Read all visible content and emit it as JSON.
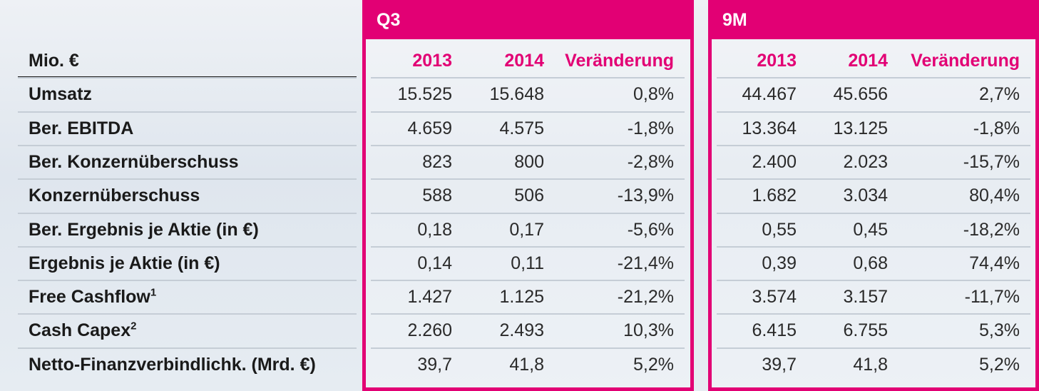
{
  "header": {
    "unit_label": "Mio. €",
    "q3_title": "Q3",
    "nm_title": "9M",
    "col_2013": "2013",
    "col_2014": "2014",
    "col_change": "Veränderung"
  },
  "rows": [
    {
      "label": "Umsatz",
      "sup": "",
      "q3_2013": "15.525",
      "q3_2014": "15.648",
      "q3_change": "0,8%",
      "nm_2013": "44.467",
      "nm_2014": "45.656",
      "nm_change": "2,7%"
    },
    {
      "label": "Ber. EBITDA",
      "sup": "",
      "q3_2013": "4.659",
      "q3_2014": "4.575",
      "q3_change": "-1,8%",
      "nm_2013": "13.364",
      "nm_2014": "13.125",
      "nm_change": "-1,8%"
    },
    {
      "label": "Ber. Konzernüberschuss",
      "sup": "",
      "q3_2013": "823",
      "q3_2014": "800",
      "q3_change": "-2,8%",
      "nm_2013": "2.400",
      "nm_2014": "2.023",
      "nm_change": "-15,7%"
    },
    {
      "label": "Konzernüberschuss",
      "sup": "",
      "q3_2013": "588",
      "q3_2014": "506",
      "q3_change": "-13,9%",
      "nm_2013": "1.682",
      "nm_2014": "3.034",
      "nm_change": "80,4%"
    },
    {
      "label": "Ber. Ergebnis je Aktie (in €)",
      "sup": "",
      "q3_2013": "0,18",
      "q3_2014": "0,17",
      "q3_change": "-5,6%",
      "nm_2013": "0,55",
      "nm_2014": "0,45",
      "nm_change": "-18,2%"
    },
    {
      "label": "Ergebnis je Aktie (in €)",
      "sup": "",
      "q3_2013": "0,14",
      "q3_2014": "0,11",
      "q3_change": "-21,4%",
      "nm_2013": "0,39",
      "nm_2014": "0,68",
      "nm_change": "74,4%"
    },
    {
      "label": "Free Cashflow",
      "sup": "1",
      "q3_2013": "1.427",
      "q3_2014": "1.125",
      "q3_change": "-21,2%",
      "nm_2013": "3.574",
      "nm_2014": "3.157",
      "nm_change": "-11,7%"
    },
    {
      "label": "Cash Capex",
      "sup": "2",
      "q3_2013": "2.260",
      "q3_2014": "2.493",
      "q3_change": "10,3%",
      "nm_2013": "6.415",
      "nm_2014": "6.755",
      "nm_change": "5,3%"
    },
    {
      "label": "Netto-Finanzverbindlichk. (Mrd. €)",
      "sup": "",
      "q3_2013": "39,7",
      "q3_2014": "41,8",
      "q3_change": "5,2%",
      "nm_2013": "39,7",
      "nm_2014": "41,8",
      "nm_change": "5,2%"
    }
  ],
  "colors": {
    "accent": "#e20074"
  }
}
